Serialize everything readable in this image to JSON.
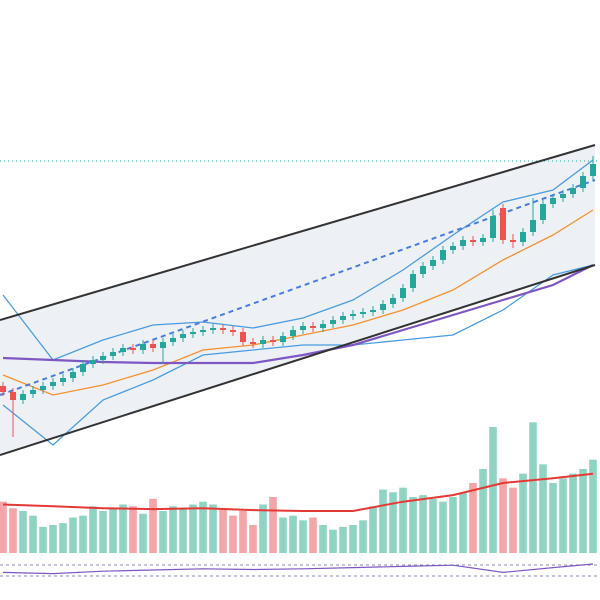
{
  "chart_data": {
    "type": "candlestick",
    "xlim": [
      -0.3,
      59.7
    ],
    "ylim": [
      0,
      460
    ],
    "up_color": "#26a69a",
    "down_color": "#ef5350",
    "open": [
      74,
      68,
      60,
      66,
      70,
      74,
      78,
      82,
      88,
      96,
      100,
      104,
      108,
      112,
      110,
      116,
      112,
      118,
      122,
      126,
      128,
      130,
      132,
      130,
      128,
      118,
      116,
      120,
      118,
      124,
      130,
      134,
      132,
      136,
      140,
      144,
      146,
      148,
      150,
      156,
      162,
      172,
      186,
      194,
      200,
      210,
      214,
      220,
      218,
      222,
      252,
      220,
      218,
      228,
      240,
      256,
      262,
      266,
      272,
      284
    ],
    "high": [
      78,
      72,
      70,
      74,
      78,
      82,
      86,
      92,
      100,
      104,
      108,
      112,
      116,
      116,
      120,
      120,
      122,
      126,
      130,
      132,
      134,
      136,
      136,
      134,
      132,
      122,
      124,
      124,
      128,
      134,
      138,
      138,
      140,
      144,
      148,
      150,
      152,
      154,
      160,
      166,
      176,
      190,
      198,
      204,
      214,
      218,
      224,
      224,
      226,
      250,
      256,
      226,
      232,
      262,
      260,
      266,
      270,
      276,
      288,
      304
    ],
    "low": [
      64,
      23,
      56,
      62,
      66,
      70,
      74,
      78,
      84,
      92,
      96,
      100,
      104,
      106,
      106,
      108,
      96,
      114,
      118,
      122,
      124,
      126,
      126,
      124,
      114,
      112,
      112,
      114,
      114,
      120,
      126,
      128,
      128,
      132,
      136,
      140,
      142,
      144,
      146,
      152,
      158,
      168,
      182,
      190,
      196,
      206,
      210,
      214,
      214,
      218,
      216,
      212,
      214,
      224,
      236,
      252,
      258,
      262,
      268,
      280
    ],
    "close": [
      68,
      60,
      66,
      70,
      74,
      78,
      82,
      88,
      96,
      100,
      104,
      108,
      112,
      110,
      116,
      112,
      118,
      122,
      126,
      128,
      130,
      132,
      130,
      128,
      118,
      116,
      120,
      118,
      124,
      130,
      134,
      132,
      136,
      140,
      144,
      146,
      148,
      150,
      156,
      162,
      172,
      186,
      194,
      200,
      210,
      214,
      220,
      218,
      222,
      244,
      220,
      218,
      228,
      240,
      256,
      262,
      266,
      272,
      284,
      296
    ],
    "overlays": [
      {
        "color": "#4a9be0",
        "x": [
          0,
          5,
          10,
          15,
          20,
          25,
          30,
          35,
          40,
          45,
          50,
          55,
          59
        ],
        "values": [
          165,
          100,
          120,
          135,
          138,
          132,
          142,
          160,
          190,
          225,
          258,
          270,
          300
        ]
      },
      {
        "color": "#4a9be0",
        "x": [
          0,
          5,
          10,
          15,
          20,
          25,
          30,
          35,
          40,
          45,
          50,
          55,
          59
        ],
        "values": [
          55,
          15,
          60,
          80,
          105,
          110,
          115,
          115,
          120,
          125,
          150,
          185,
          195
        ]
      },
      {
        "color": "#f5902e",
        "x": [
          0,
          5,
          10,
          15,
          20,
          25,
          30,
          35,
          40,
          45,
          50,
          55,
          59
        ],
        "values": [
          85,
          65,
          75,
          90,
          110,
          115,
          125,
          135,
          150,
          170,
          200,
          225,
          250
        ]
      },
      {
        "color": "#7e57c2",
        "x": [
          0,
          5,
          10,
          15,
          20,
          25,
          30,
          35,
          40,
          45,
          50,
          55,
          59
        ],
        "values": [
          102,
          100,
          98,
          97,
          97,
          97,
          105,
          115,
          130,
          145,
          160,
          175,
          195
        ]
      },
      {
        "color": "#333333",
        "x": [
          -0.3,
          59.2
        ],
        "values": [
          140,
          315
        ]
      },
      {
        "color": "#333333",
        "x": [
          -0.3,
          59.2
        ],
        "values": [
          5,
          195
        ]
      },
      {
        "color": "#4a7be0",
        "dash": true,
        "x": [
          -0.3,
          59.2
        ],
        "values": [
          65,
          280
        ]
      }
    ],
    "reference_line": {
      "value": 299,
      "color": "#26a69a"
    },
    "volume": {
      "ylim": [
        0,
        150
      ],
      "up_color": "#8fd3c3",
      "down_color": "#f4a5a8",
      "values": [
        55,
        48,
        45,
        40,
        28,
        30,
        32,
        38,
        40,
        50,
        45,
        48,
        52,
        50,
        42,
        58,
        45,
        50,
        48,
        52,
        55,
        52,
        48,
        40,
        45,
        30,
        52,
        60,
        38,
        40,
        35,
        38,
        30,
        25,
        28,
        30,
        35,
        50,
        68,
        65,
        70,
        60,
        62,
        58,
        55,
        60,
        65,
        75,
        90,
        135,
        80,
        70,
        85,
        140,
        95,
        75,
        80,
        85,
        90,
        100
      ],
      "average": {
        "color": "#e53935",
        "x": [
          0,
          5,
          10,
          15,
          20,
          25,
          30,
          35,
          40,
          45,
          50,
          55,
          59
        ],
        "values": [
          52,
          50,
          48,
          47,
          48,
          46,
          45,
          45,
          55,
          62,
          75,
          80,
          85
        ]
      }
    },
    "oscillator": {
      "ylim": [
        0,
        100
      ],
      "color": "#7e57c2",
      "x": [
        0,
        5,
        10,
        15,
        20,
        25,
        30,
        35,
        40,
        45,
        50,
        55,
        59
      ],
      "values": [
        40,
        35,
        45,
        50,
        55,
        52,
        55,
        60,
        65,
        70,
        40,
        60,
        75
      ]
    }
  }
}
